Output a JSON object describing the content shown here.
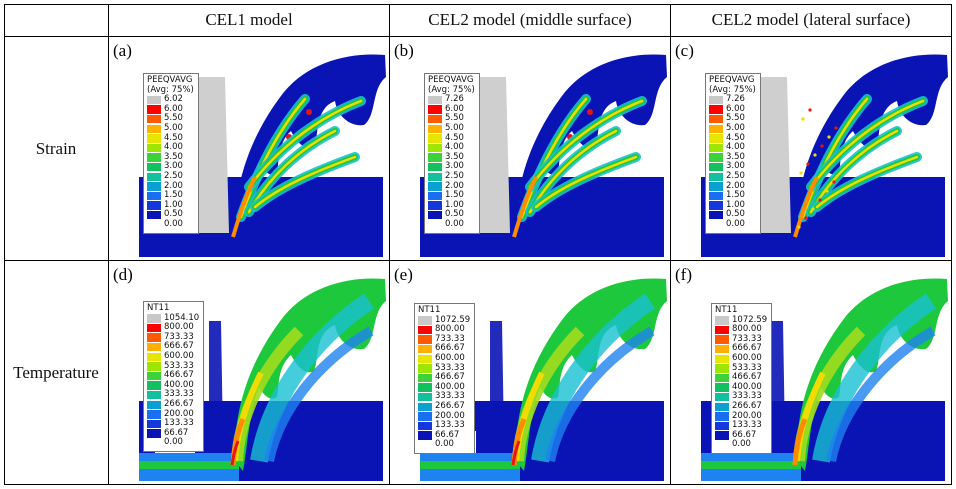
{
  "table": {
    "columns": [
      "CEL1 model",
      "CEL2 model (middle surface)",
      "CEL2 model (lateral surface)"
    ],
    "rows": [
      "Strain",
      "Temperature"
    ]
  },
  "legend_colors": [
    "#c8c8c8",
    "#ff0000",
    "#ff5a00",
    "#ffb000",
    "#e6e600",
    "#9ee600",
    "#3cd23c",
    "#12c060",
    "#12c0a0",
    "#0aa0d2",
    "#1a6ef0",
    "#1438dc",
    "#0a14b4"
  ],
  "field_colors": {
    "background": "#0a14b4",
    "light_blue": "#1e82f0",
    "cyan": "#18c0d2",
    "green": "#1ec83c",
    "yellow_green": "#a0dc1e",
    "yellow": "#f0dc00",
    "orange": "#ff8c00",
    "red": "#e61414"
  },
  "panels": [
    {
      "label": "(a)",
      "type": "strain",
      "legend": {
        "title": "PEEQVAVG",
        "subtitle": "(Avg: 75%)",
        "values": [
          "6.02",
          "6.00",
          "5.50",
          "5.00",
          "4.50",
          "4.00",
          "3.50",
          "3.00",
          "2.50",
          "2.00",
          "1.50",
          "1.00",
          "0.50",
          "0.00"
        ]
      }
    },
    {
      "label": "(b)",
      "type": "strain",
      "legend": {
        "title": "PEEQVAVG",
        "subtitle": "(Avg: 75%)",
        "values": [
          "7.26",
          "6.00",
          "5.50",
          "5.00",
          "4.50",
          "4.00",
          "3.50",
          "3.00",
          "2.50",
          "2.00",
          "1.50",
          "1.00",
          "0.50",
          "0.00"
        ]
      }
    },
    {
      "label": "(c)",
      "type": "strain",
      "legend": {
        "title": "PEEQVAVG",
        "subtitle": "(Avg: 75%)",
        "values": [
          "7.26",
          "6.00",
          "5.50",
          "5.00",
          "4.50",
          "4.00",
          "3.50",
          "3.00",
          "2.50",
          "2.00",
          "1.50",
          "1.00",
          "0.50",
          "0.00"
        ]
      }
    },
    {
      "label": "(d)",
      "type": "temperature",
      "legend": {
        "title": "NT11",
        "subtitle": "",
        "values": [
          "1054.10",
          "800.00",
          "733.33",
          "666.67",
          "600.00",
          "533.33",
          "466.67",
          "400.00",
          "333.33",
          "266.67",
          "200.00",
          "133.33",
          "66.67",
          "0.00"
        ]
      }
    },
    {
      "label": "(e)",
      "type": "temperature",
      "legend": {
        "title": "NT11",
        "subtitle": "",
        "values": [
          "1072.59",
          "800.00",
          "733.33",
          "666.67",
          "600.00",
          "533.33",
          "466.67",
          "400.00",
          "333.33",
          "266.67",
          "200.00",
          "133.33",
          "66.67",
          "0.00"
        ]
      }
    },
    {
      "label": "(f)",
      "type": "temperature",
      "legend": {
        "title": "NT11",
        "subtitle": "",
        "values": [
          "1072.59",
          "800.00",
          "733.33",
          "666.67",
          "600.00",
          "533.33",
          "466.67",
          "400.00",
          "333.33",
          "266.67",
          "200.00",
          "133.33",
          "66.67",
          "0.00"
        ]
      }
    }
  ]
}
